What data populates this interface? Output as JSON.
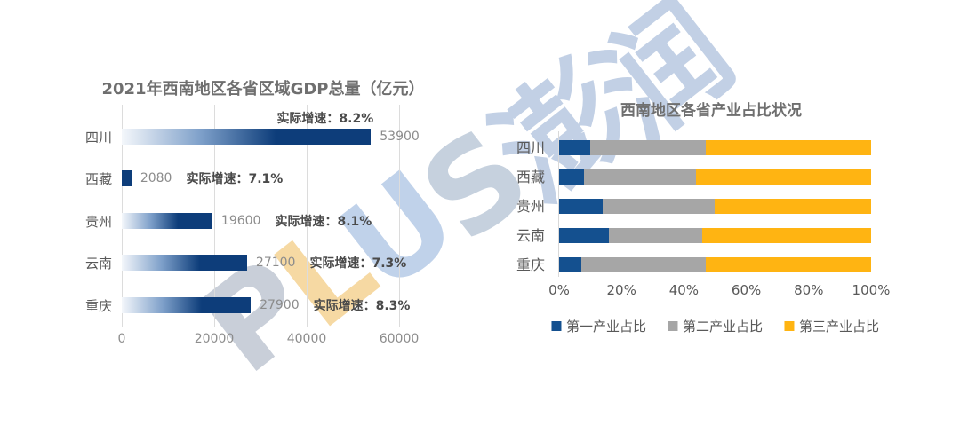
{
  "page": {
    "background": "#ffffff"
  },
  "watermark": {
    "text": "PLUS澎润",
    "letters": [
      {
        "char": "P",
        "color": "#c9cfd9"
      },
      {
        "char": "L",
        "color": "#f6d9a3"
      },
      {
        "char": "U",
        "color": "#c0d2ea"
      },
      {
        "char": "S",
        "color": "#c6d1de"
      },
      {
        "char": "澎",
        "color": "#c2d0e5"
      },
      {
        "char": "润",
        "color": "#c2d0e5"
      }
    ]
  },
  "chart_data": [
    {
      "id": "gdp",
      "type": "bar",
      "orientation": "horizontal",
      "title": "2021年西南地区各省区域GDP总量（亿元）",
      "categories": [
        "四川",
        "西藏",
        "贵州",
        "云南",
        "重庆"
      ],
      "values": [
        53900,
        2080,
        19600,
        27100,
        27900
      ],
      "value_labels": [
        "53900",
        "2080",
        "19600",
        "27100",
        "27900"
      ],
      "growth_labels": [
        "实际增速：8.2%",
        "实际增速：7.1%",
        "实际增速：8.1%",
        "实际增速：7.3%",
        "实际增速：8.3%"
      ],
      "xlim": [
        0,
        60000
      ],
      "x_ticks": [
        "0",
        "20000",
        "40000",
        "60000"
      ],
      "grid": true,
      "colors": {
        "bar_gradient_start": "#f4f7fb",
        "bar_gradient_mid": "#7d9fc9",
        "bar_solid": "#0d3d7a",
        "gridline": "#dcdcdc",
        "tick_text": "#8c8c8c",
        "category_text": "#595959",
        "value_text": "#8c8c8c",
        "growth_text": "#4a4a4a"
      }
    },
    {
      "id": "industry",
      "type": "bar",
      "subtype": "stacked",
      "orientation": "horizontal",
      "title": "西南地区各省产业占比状况",
      "categories": [
        "四川",
        "西藏",
        "贵州",
        "云南",
        "重庆"
      ],
      "series": [
        {
          "name": "第一产业占比",
          "color": "#14508f",
          "values": [
            10,
            8,
            14,
            16,
            7
          ]
        },
        {
          "name": "第二产业占比",
          "color": "#a6a6a6",
          "values": [
            37,
            36,
            36,
            30,
            40
          ]
        },
        {
          "name": "第三产业占比",
          "color": "#ffb412",
          "values": [
            53,
            56,
            50,
            54,
            53
          ]
        }
      ],
      "xlim": [
        0,
        100
      ],
      "x_ticks": [
        "0%",
        "20%",
        "40%",
        "60%",
        "80%",
        "100%"
      ],
      "grid": false,
      "legend_position": "bottom",
      "colors": {
        "axis_line": "#d9d9d9",
        "tick_text": "#595959",
        "category_text": "#595959",
        "legend_text": "#595959"
      }
    }
  ]
}
